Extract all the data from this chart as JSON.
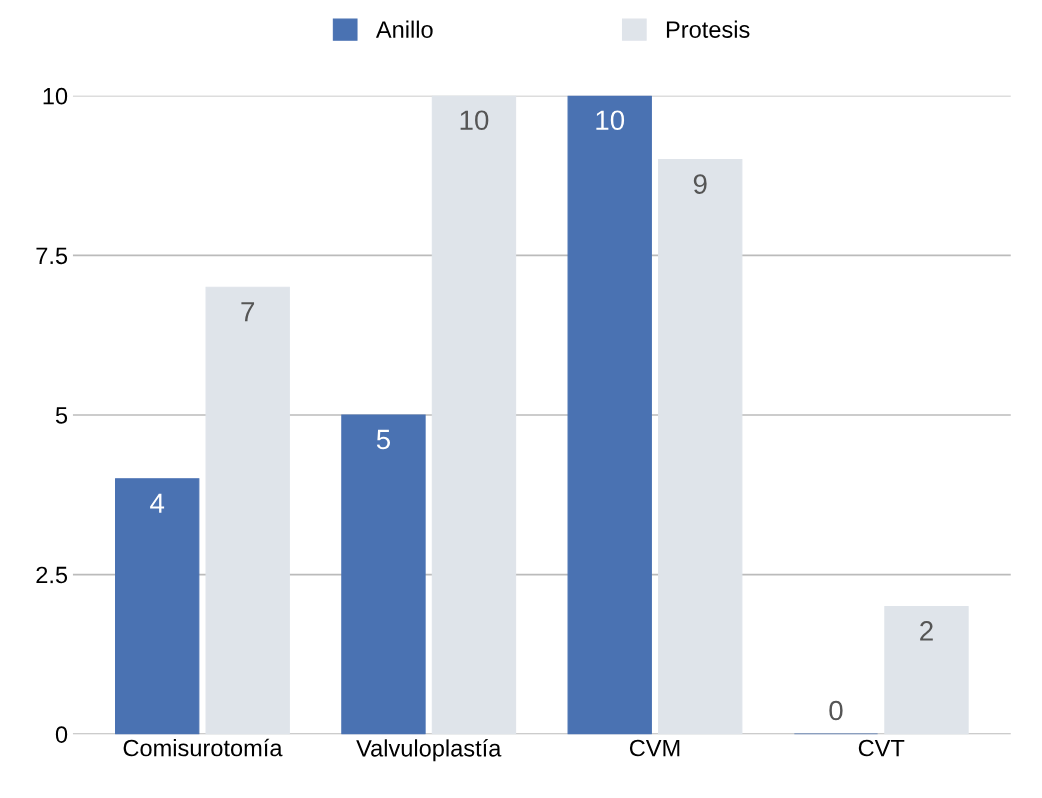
{
  "chart_data": {
    "type": "bar",
    "categories": [
      "Comisurotomía",
      "Valvuloplastía",
      "CVM",
      "CVT"
    ],
    "series": [
      {
        "name": "Anillo",
        "color": "#4a72b2",
        "values": [
          4,
          5,
          10,
          0
        ]
      },
      {
        "name": "Protesis",
        "color": "#dfe4ea",
        "values": [
          7,
          10,
          9,
          2
        ]
      }
    ],
    "ylim": [
      0,
      10
    ],
    "yticks": [
      0,
      2.5,
      5,
      7.5,
      10
    ],
    "grid": "y",
    "legend": "top",
    "data_labels": true
  }
}
